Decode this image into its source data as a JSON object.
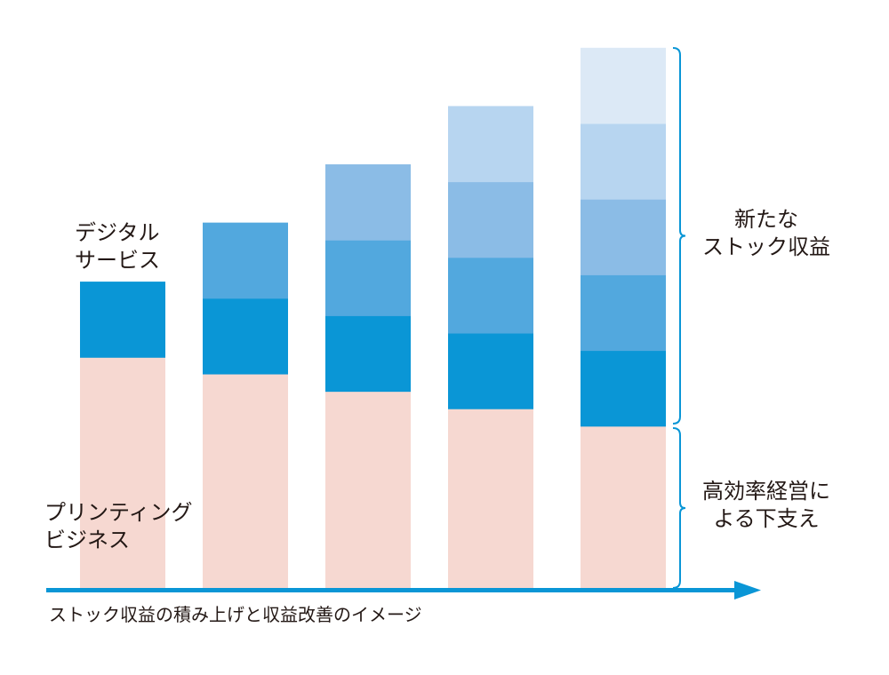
{
  "chart_data": {
    "type": "bar",
    "stacked": true,
    "categories": [
      "",
      "",
      "",
      "",
      ""
    ],
    "series": [
      {
        "name": "プリンティングビジネス",
        "values": [
          3.06,
          2.84,
          2.61,
          2.38,
          2.15
        ],
        "color": "#f6d8d1"
      },
      {
        "values": [
          1,
          1,
          1,
          1,
          1
        ],
        "color": "#0a96d6"
      },
      {
        "values": [
          0,
          1,
          1,
          1,
          1
        ],
        "color": "#52a8de"
      },
      {
        "values": [
          0,
          0,
          1,
          1,
          1
        ],
        "color": "#8bbce6"
      },
      {
        "values": [
          0,
          0,
          0,
          1,
          1
        ],
        "color": "#b7d5f0"
      },
      {
        "values": [
          0,
          0,
          0,
          0,
          1
        ],
        "color": "#dce9f6"
      }
    ],
    "axis_color": "#0a96d6",
    "grid": false
  },
  "labels": {
    "digital": "デジタル\nサービス",
    "printing": "プリンティング\nビジネス",
    "new_stock": "新たな\nストック収益",
    "efficiency": "高効率経営に\nよる下支え"
  },
  "caption": "ストック収益の積み上げと収益改善のイメージ"
}
